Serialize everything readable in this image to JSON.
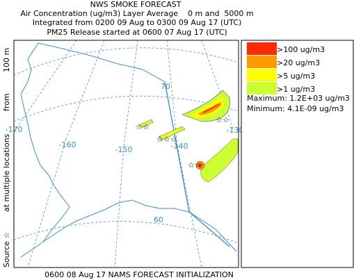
{
  "header": {
    "title": "NWS SMOKE FORECAST",
    "subtitle": "Air Concentration (ug/m3) Layer Average    0 m and  5000 m",
    "integration": "Integrated from 0200 09 Aug to 0300 09 Aug 17 (UTC)",
    "release": "PM25 Release started at 0600 07 Aug 17 (UTC)"
  },
  "side_label": {
    "source": "Source ☆",
    "locations": "at multiple locations",
    "from": "from",
    "height": "100 m"
  },
  "footer": "0600 08 Aug 17 NAMS FORECAST INITIALIZATION",
  "legend": {
    "items": [
      {
        "label": ">100 ug/m3",
        "color": "#ff2a00"
      },
      {
        "label": ">20 ug/m3",
        "color": "#ff9900"
      },
      {
        "label": ">5 ug/m3",
        "color": "#ffff00"
      },
      {
        "label": ">1 ug/m3",
        "color": "#ccff33"
      }
    ],
    "maximum": "Maximum: 1.2E+03 ug/m3",
    "minimum": "Minimum: 4.1E-09 ug/m3"
  },
  "map": {
    "lon_labels": [
      "-170",
      "-160",
      "-150",
      "-140",
      "-130"
    ],
    "lat_labels": [
      "70",
      "60"
    ]
  }
}
